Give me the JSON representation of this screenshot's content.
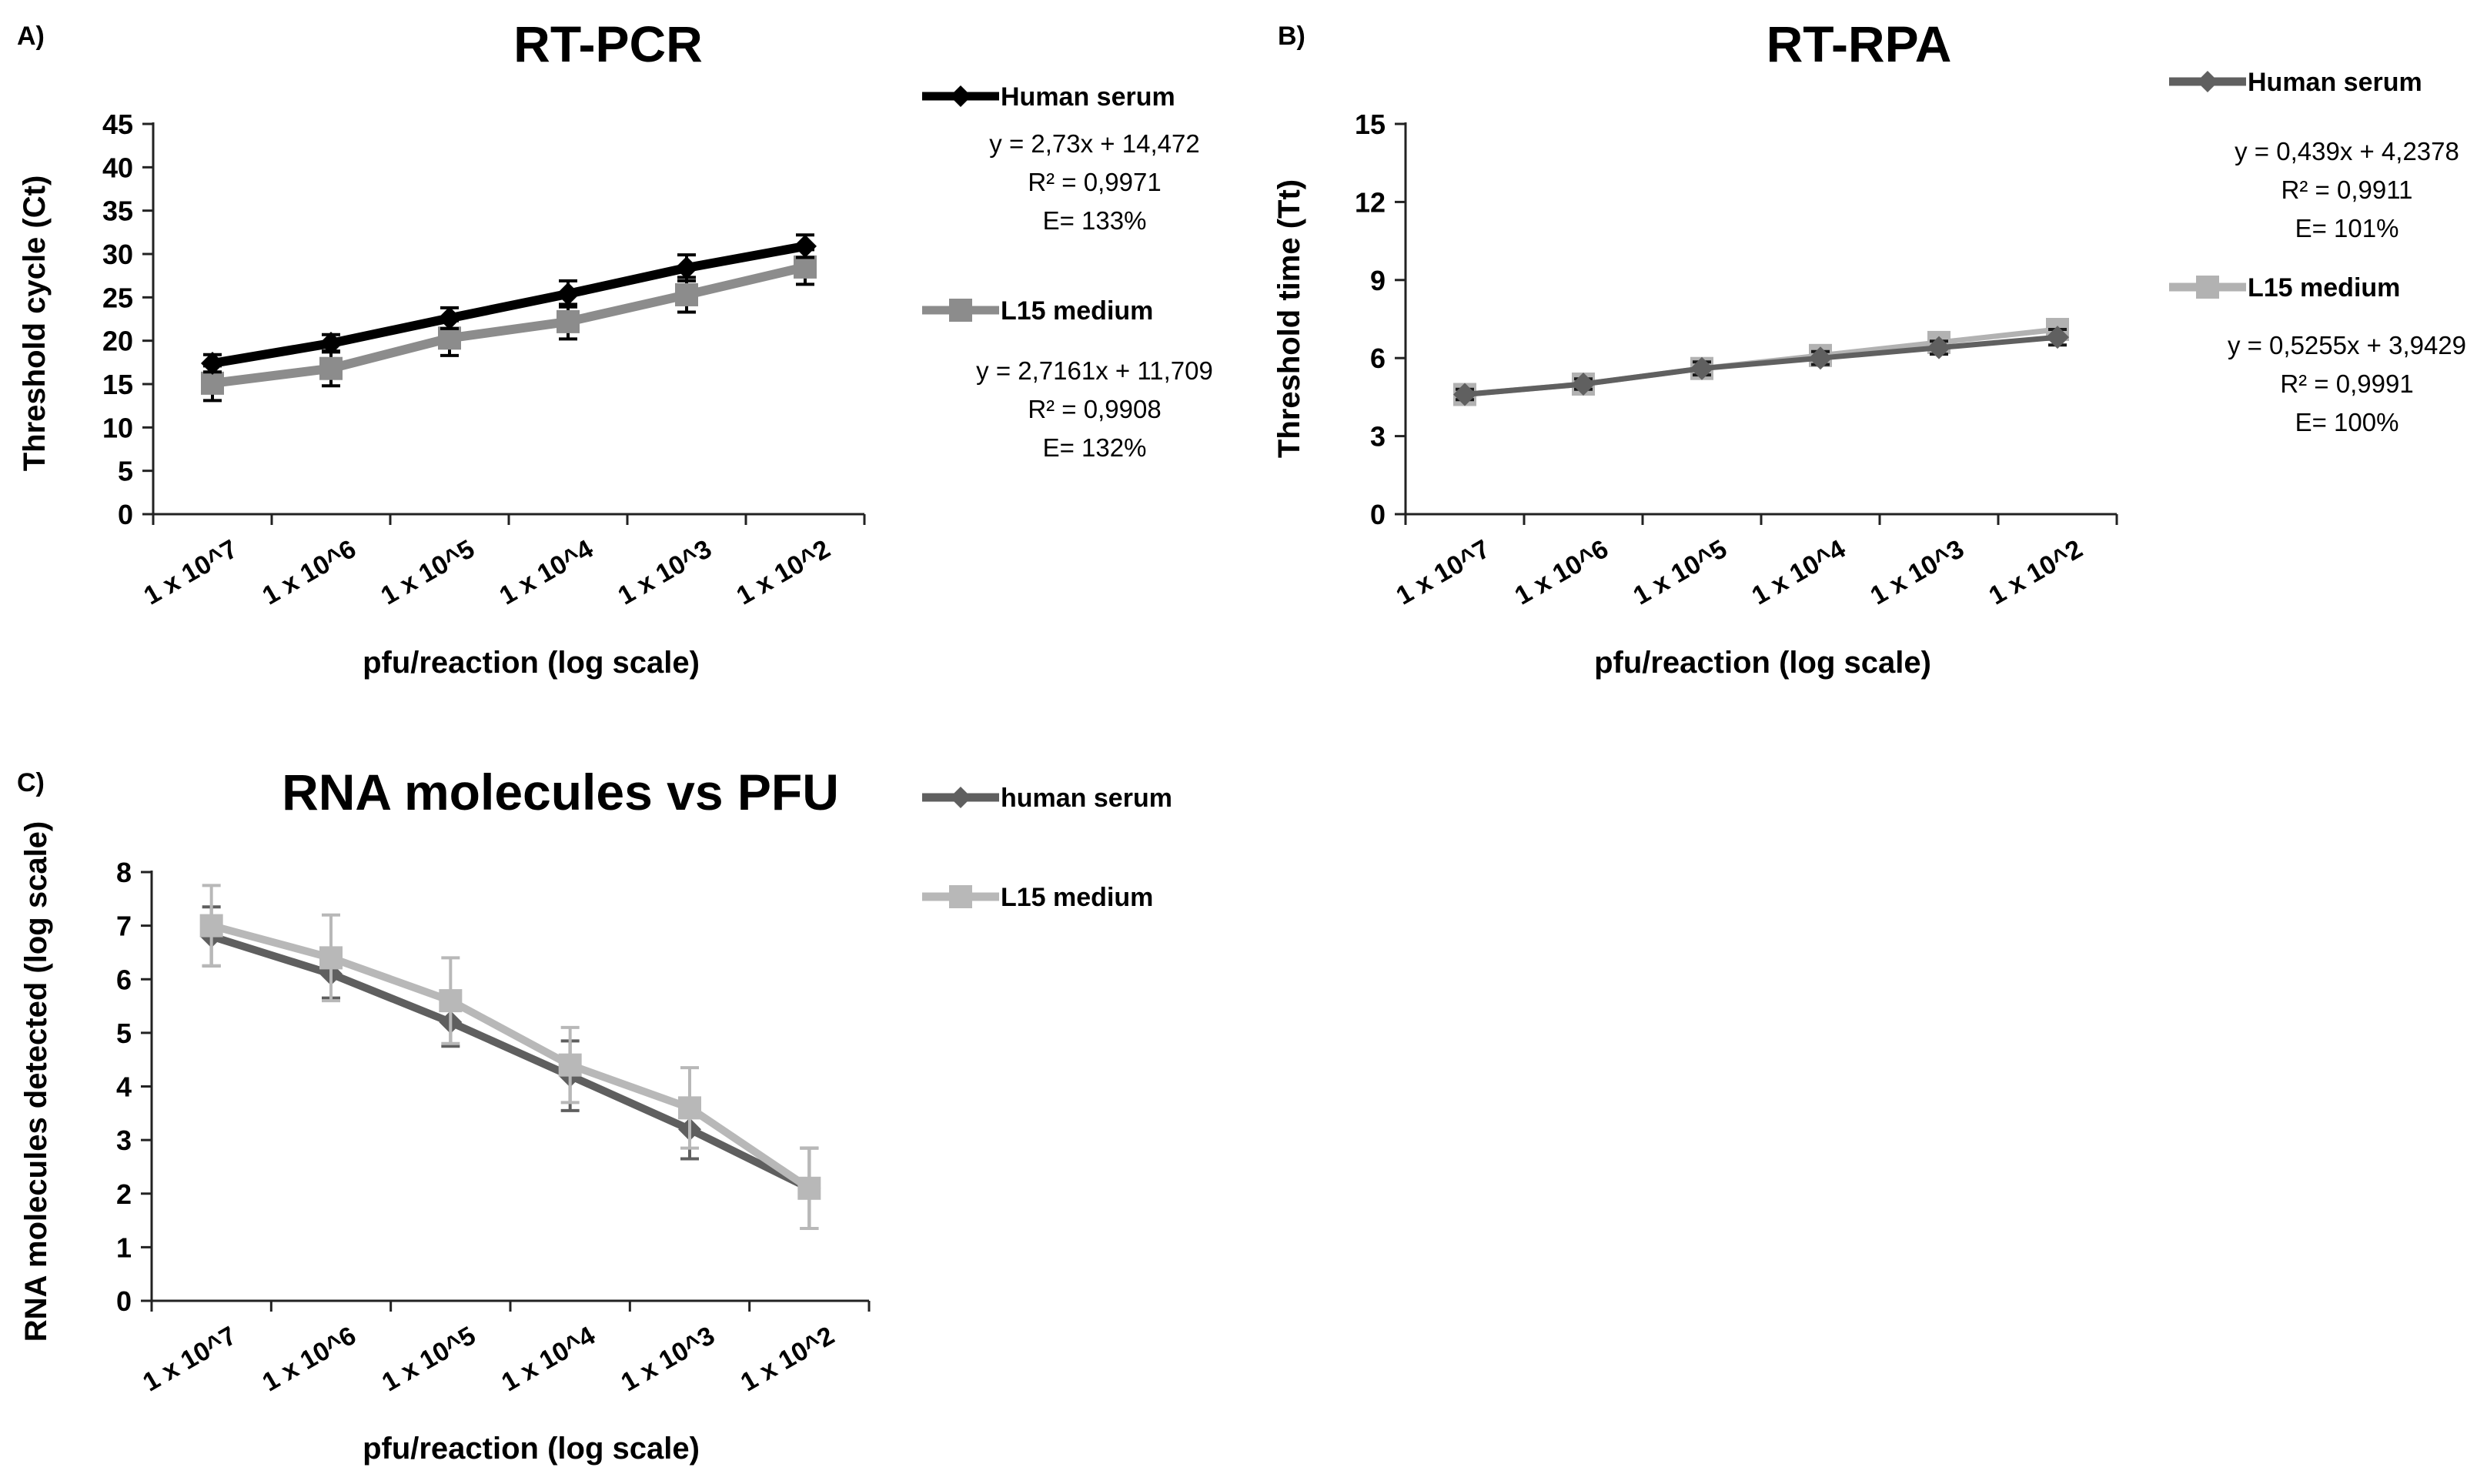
{
  "chart_data": [
    {
      "panel": "A)",
      "type": "line",
      "title": "RT-PCR",
      "xlabel": "pfu/reaction (log scale)",
      "ylabel": "Threshold cycle (Ct)",
      "categories": [
        "1 x 10^7",
        "1 x 10^6",
        "1 x 10^5",
        "1 x 10^4",
        "1 x 10^3",
        "1 x 10^2"
      ],
      "ylim": [
        0,
        45
      ],
      "yticks": [
        0,
        5,
        10,
        15,
        20,
        25,
        30,
        35,
        40,
        45
      ],
      "grid": false,
      "series": [
        {
          "name": "Human serum",
          "marker": "diamond",
          "color": "#000000",
          "values": [
            17.4,
            19.7,
            22.6,
            25.4,
            28.4,
            30.9
          ],
          "errors": [
            1.0,
            1.0,
            1.2,
            1.5,
            1.5,
            1.3
          ],
          "equation": "y = 2,73x + 14,472",
          "r2": "R² = 0,9971",
          "efficiency": "E= 133%"
        },
        {
          "name": "L15 medium",
          "marker": "square",
          "color": "#8c8c8c",
          "values": [
            15.1,
            16.8,
            20.3,
            22.2,
            25.3,
            28.5
          ],
          "errors": [
            2.0,
            2.0,
            2.0,
            2.0,
            2.0,
            2.0
          ],
          "equation": "y = 2,7161x + 11,709",
          "r2": "R² = 0,9908",
          "efficiency": "E= 132%"
        }
      ]
    },
    {
      "panel": "B)",
      "type": "line",
      "title": "RT-RPA",
      "xlabel": "pfu/reaction (log scale)",
      "ylabel": "Threshold time (Tt)",
      "categories": [
        "1 x 10^7",
        "1 x 10^6",
        "1 x 10^5",
        "1 x 10^4",
        "1 x 10^3",
        "1 x 10^2"
      ],
      "ylim": [
        0,
        15
      ],
      "yticks": [
        0,
        3,
        6,
        9,
        12,
        15
      ],
      "grid": false,
      "series": [
        {
          "name": "Human serum",
          "marker": "diamond",
          "color": "#606060",
          "values": [
            4.6,
            5.0,
            5.6,
            6.0,
            6.4,
            6.8
          ],
          "errors": [
            0.2,
            0.2,
            0.25,
            0.25,
            0.25,
            0.3
          ],
          "equation": "y = 0,439x + 4,2378",
          "r2": "R² = 0,9911",
          "efficiency": "E= 101%"
        },
        {
          "name": "L15 medium",
          "marker": "square",
          "color": "#b2b2b2",
          "values": [
            4.6,
            5.0,
            5.6,
            6.1,
            6.6,
            7.1
          ],
          "errors": [
            0.2,
            0.2,
            0.2,
            0.2,
            0.2,
            0.2
          ],
          "equation": "y = 0,5255x + 3,9429",
          "r2": "R² = 0,9991",
          "efficiency": "E= 100%"
        }
      ]
    },
    {
      "panel": "C)",
      "type": "line",
      "title": "RNA molecules vs PFU",
      "xlabel": "pfu/reaction (log scale)",
      "ylabel": "RNA molecules detected (log scale)",
      "categories": [
        "1 x 10^7",
        "1 x 10^6",
        "1 x 10^5",
        "1 x 10^4",
        "1 x 10^3",
        "1 x 10^2"
      ],
      "ylim": [
        0,
        8
      ],
      "yticks": [
        0,
        1,
        2,
        3,
        4,
        5,
        6,
        7,
        8
      ],
      "grid": false,
      "series": [
        {
          "name": "human serum",
          "marker": "diamond",
          "color": "#5f5f5f",
          "values": [
            6.8,
            6.1,
            5.2,
            4.2,
            3.2,
            2.1
          ],
          "errors": [
            0.55,
            0.45,
            0.45,
            0.65,
            0.55,
            0.75
          ],
          "equation": "",
          "r2": "",
          "efficiency": ""
        },
        {
          "name": "L15 medium",
          "marker": "square",
          "color": "#b8b8b8",
          "values": [
            7.0,
            6.4,
            5.6,
            4.4,
            3.6,
            2.1
          ],
          "errors": [
            0.75,
            0.8,
            0.8,
            0.7,
            0.75,
            0.75
          ],
          "equation": "",
          "r2": "",
          "efficiency": ""
        }
      ]
    }
  ]
}
